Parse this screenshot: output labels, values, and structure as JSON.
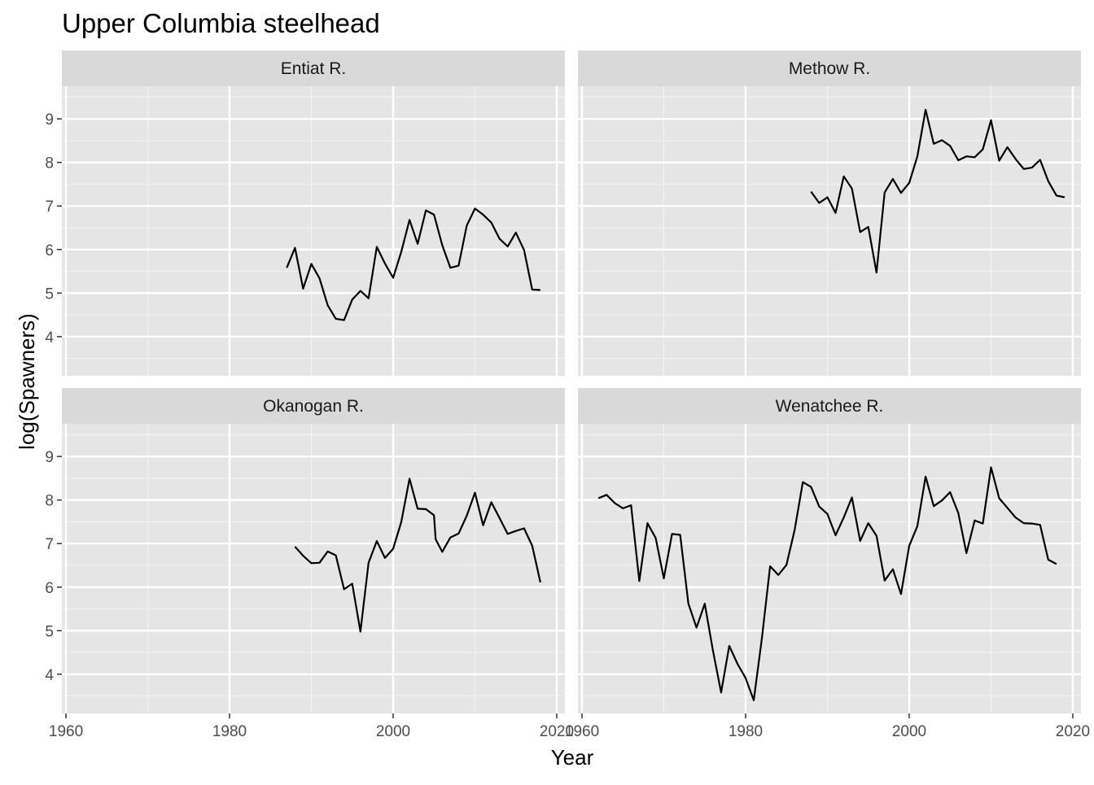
{
  "chart_data": {
    "type": "line",
    "title": "Upper Columbia steelhead",
    "xlabel": "Year",
    "ylabel": "log(Spawners)",
    "xlim": [
      1959.5,
      2021
    ],
    "ylim": [
      3.1,
      9.75
    ],
    "x_ticks": [
      1960,
      1980,
      2000,
      2020
    ],
    "x_tick_labels": [
      "1960",
      "1980",
      "2000",
      "2020"
    ],
    "y_ticks": [
      4,
      5,
      6,
      7,
      8,
      9
    ],
    "y_tick_labels": [
      "4",
      "5",
      "6",
      "7",
      "8",
      "9"
    ],
    "grid": true,
    "line_color": "#000000",
    "panel_background": "#e5e5e5",
    "strip_background": "#d9d9d9",
    "facets": [
      {
        "name": "Entiat R.",
        "x": [
          1987,
          1988,
          1989,
          1990,
          1991,
          1992,
          1993,
          1994,
          1995,
          1996,
          1997,
          1998,
          1999,
          2000,
          2001,
          2002,
          2003,
          2004,
          2005,
          2006,
          2007,
          2008,
          2009,
          2010,
          2011,
          2012,
          2013,
          2014,
          2015,
          2016,
          2017,
          2018
        ],
        "values": [
          5.58,
          6.04,
          5.1,
          5.67,
          5.34,
          4.72,
          4.41,
          4.38,
          4.85,
          5.05,
          4.88,
          6.06,
          5.68,
          5.35,
          5.95,
          6.68,
          6.13,
          6.9,
          6.8,
          6.1,
          5.58,
          5.63,
          6.55,
          6.94,
          6.8,
          6.62,
          6.25,
          6.07,
          6.39,
          5.99,
          5.08,
          5.07
        ]
      },
      {
        "name": "Methow R.",
        "x": [
          1988,
          1989,
          1990,
          1991,
          1992,
          1993,
          1994,
          1995,
          1996,
          1997,
          1998,
          1999,
          2000,
          2001,
          2002,
          2003,
          2004,
          2005,
          2006,
          2007,
          2008,
          2009,
          2010,
          2011,
          2012,
          2013,
          2014,
          2015,
          2016,
          2017,
          2018,
          2019
        ],
        "values": [
          7.33,
          7.07,
          7.2,
          6.84,
          7.68,
          7.4,
          6.4,
          6.52,
          5.47,
          7.31,
          7.62,
          7.3,
          7.53,
          8.14,
          9.21,
          8.43,
          8.51,
          8.38,
          8.05,
          8.14,
          8.12,
          8.3,
          8.97,
          8.04,
          8.35,
          8.08,
          7.85,
          7.88,
          8.06,
          7.57,
          7.24,
          7.2
        ]
      },
      {
        "name": "Okanogan R.",
        "x": [
          1988,
          1989,
          1990,
          1991,
          1992,
          1993,
          1994,
          1995,
          1996,
          1997,
          1998,
          1999,
          2000,
          2001,
          2002,
          2003,
          2004,
          2005,
          2005.2,
          2006,
          2007,
          2008,
          2009,
          2010,
          2011,
          2012,
          2013,
          2014,
          2015,
          2016,
          2017,
          2018
        ],
        "values": [
          6.93,
          6.72,
          6.55,
          6.56,
          6.82,
          6.73,
          5.95,
          6.08,
          4.98,
          6.56,
          7.06,
          6.67,
          6.88,
          7.5,
          8.49,
          7.8,
          7.79,
          7.65,
          7.1,
          6.81,
          7.14,
          7.23,
          7.64,
          8.17,
          7.42,
          7.95,
          7.59,
          7.22,
          7.29,
          7.35,
          6.95,
          6.11
        ]
      },
      {
        "name": "Wenatchee R.",
        "x": [
          1962,
          1963,
          1964,
          1965,
          1966,
          1967,
          1968,
          1969,
          1970,
          1971,
          1972,
          1973,
          1974,
          1975,
          1976,
          1977,
          1978,
          1979,
          1980,
          1981,
          1982,
          1983,
          1984,
          1985,
          1986,
          1987,
          1988,
          1989,
          1990,
          1991,
          1992,
          1993,
          1994,
          1995,
          1996,
          1997,
          1998,
          1999,
          2000,
          2001,
          2002,
          2003,
          2004,
          2005,
          2006,
          2007,
          2008,
          2009,
          2010,
          2011,
          2012,
          2013,
          2014,
          2015,
          2016,
          2017,
          2018
        ],
        "values": [
          8.04,
          8.12,
          7.93,
          7.81,
          7.88,
          6.14,
          7.47,
          7.13,
          6.2,
          7.22,
          7.2,
          5.62,
          5.07,
          5.62,
          4.55,
          3.58,
          4.65,
          4.24,
          3.91,
          3.4,
          4.84,
          6.48,
          6.28,
          6.51,
          7.32,
          8.41,
          8.3,
          7.85,
          7.68,
          7.19,
          7.6,
          8.06,
          7.06,
          7.47,
          7.18,
          6.15,
          6.41,
          5.84,
          6.95,
          7.4,
          8.54,
          7.86,
          7.99,
          8.18,
          7.7,
          6.78,
          7.53,
          7.46,
          8.75,
          8.04,
          7.82,
          7.6,
          7.47,
          7.46,
          7.43,
          6.63,
          6.53
        ]
      }
    ]
  }
}
